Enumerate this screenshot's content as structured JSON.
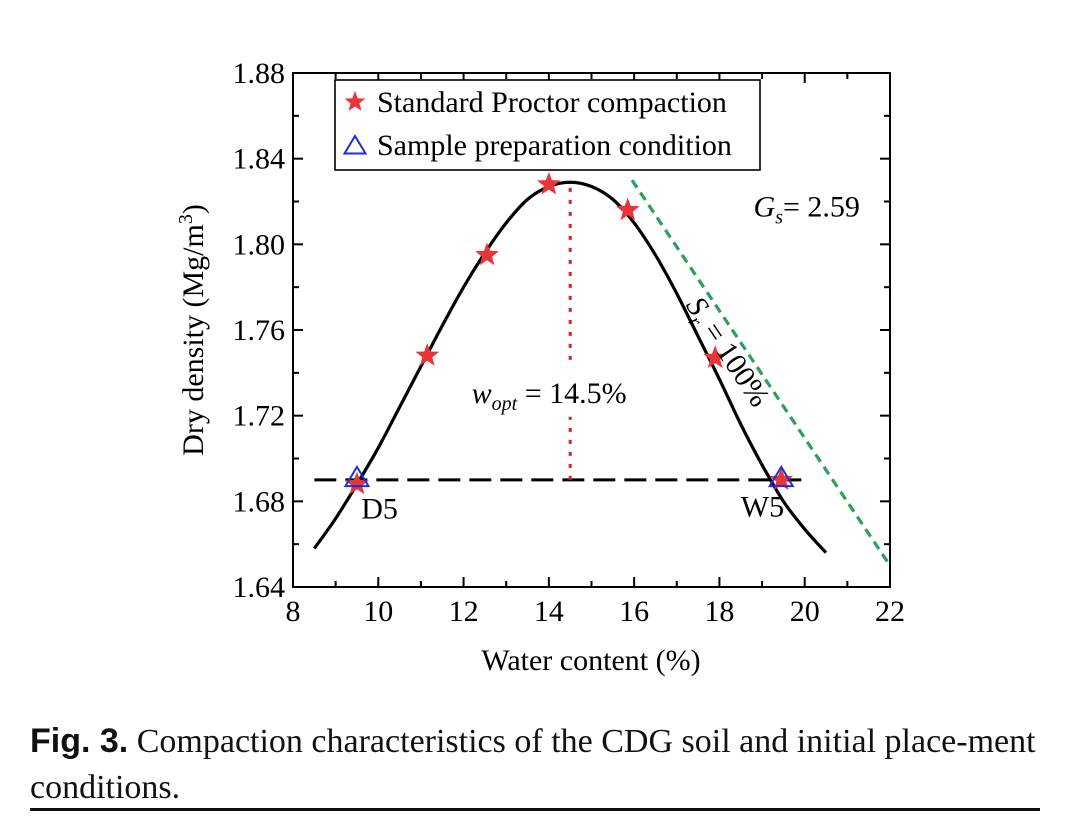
{
  "chart_data": {
    "type": "scatter",
    "xlabel": "Water content (%)",
    "ylabel": "Dry density (Mg/m",
    "ylabel_sup": "3",
    "ylabel_end": ")",
    "xlim": [
      8,
      22
    ],
    "ylim": [
      1.64,
      1.88
    ],
    "x_ticks": [
      8,
      10,
      12,
      14,
      16,
      18,
      20,
      22
    ],
    "y_ticks": [
      1.64,
      1.68,
      1.72,
      1.76,
      1.8,
      1.84,
      1.88
    ],
    "x_tick_labels": [
      "8",
      "10",
      "12",
      "14",
      "16",
      "18",
      "20",
      "22"
    ],
    "y_tick_labels": [
      "1.64",
      "1.68",
      "1.72",
      "1.76",
      "1.80",
      "1.84",
      "1.88"
    ],
    "legend_position": "top-left",
    "series": [
      {
        "name": "Standard Proctor compaction",
        "marker": "star",
        "color": "#e8353a",
        "x": [
          9.5,
          11.15,
          12.55,
          14.0,
          15.85,
          17.9,
          19.45
        ],
        "y": [
          1.688,
          1.748,
          1.795,
          1.828,
          1.816,
          1.747,
          1.69
        ]
      },
      {
        "name": "Sample preparation condition",
        "marker": "triangle",
        "color": "#1f2fd6",
        "x": [
          9.5,
          19.45
        ],
        "y": [
          1.69,
          1.69
        ]
      }
    ],
    "fit_curve": {
      "style": "solid",
      "color": "#000000",
      "x": [
        8.5,
        9.0,
        9.5,
        10.0,
        10.5,
        11.0,
        11.5,
        12.0,
        12.5,
        13.0,
        13.5,
        14.0,
        14.5,
        15.0,
        15.5,
        16.0,
        16.5,
        17.0,
        17.5,
        18.0,
        18.5,
        19.0,
        19.5,
        20.0,
        20.5
      ],
      "y": [
        1.658,
        1.672,
        1.688,
        1.705,
        1.724,
        1.743,
        1.762,
        1.78,
        1.796,
        1.81,
        1.821,
        1.827,
        1.829,
        1.827,
        1.821,
        1.81,
        1.795,
        1.777,
        1.757,
        1.737,
        1.716,
        1.697,
        1.68,
        1.667,
        1.656
      ]
    },
    "saturation_line": {
      "label_parts": [
        "S",
        "r",
        " = 100%"
      ],
      "style": "dashed",
      "color": "#2e9e5b",
      "x": [
        15.95,
        22.0
      ],
      "y": [
        1.83,
        1.65
      ]
    },
    "reference_lines": [
      {
        "type": "horizontal",
        "y": 1.69,
        "x": [
          8.5,
          20.0
        ],
        "style": "dashed",
        "color": "#000000"
      },
      {
        "type": "vertical",
        "x": 14.5,
        "y": [
          1.69,
          1.829
        ],
        "style": "dotted",
        "color": "#d2202a"
      }
    ],
    "annotations": {
      "gs_parts": [
        "G",
        "s",
        "= 2.59"
      ],
      "gs_at": [
        18.8,
        1.813
      ],
      "wopt_parts": [
        "w",
        "opt",
        " = 14.5%"
      ],
      "wopt_at": [
        14.3,
        1.726
      ],
      "d5": "D5",
      "d5_at": [
        9.6,
        1.672
      ],
      "w5": "W5",
      "w5_at": [
        18.5,
        1.673
      ]
    }
  },
  "caption": {
    "label": "Fig. 3.",
    "text": " Compaction characteristics of the CDG soil and initial place-ment conditions."
  }
}
